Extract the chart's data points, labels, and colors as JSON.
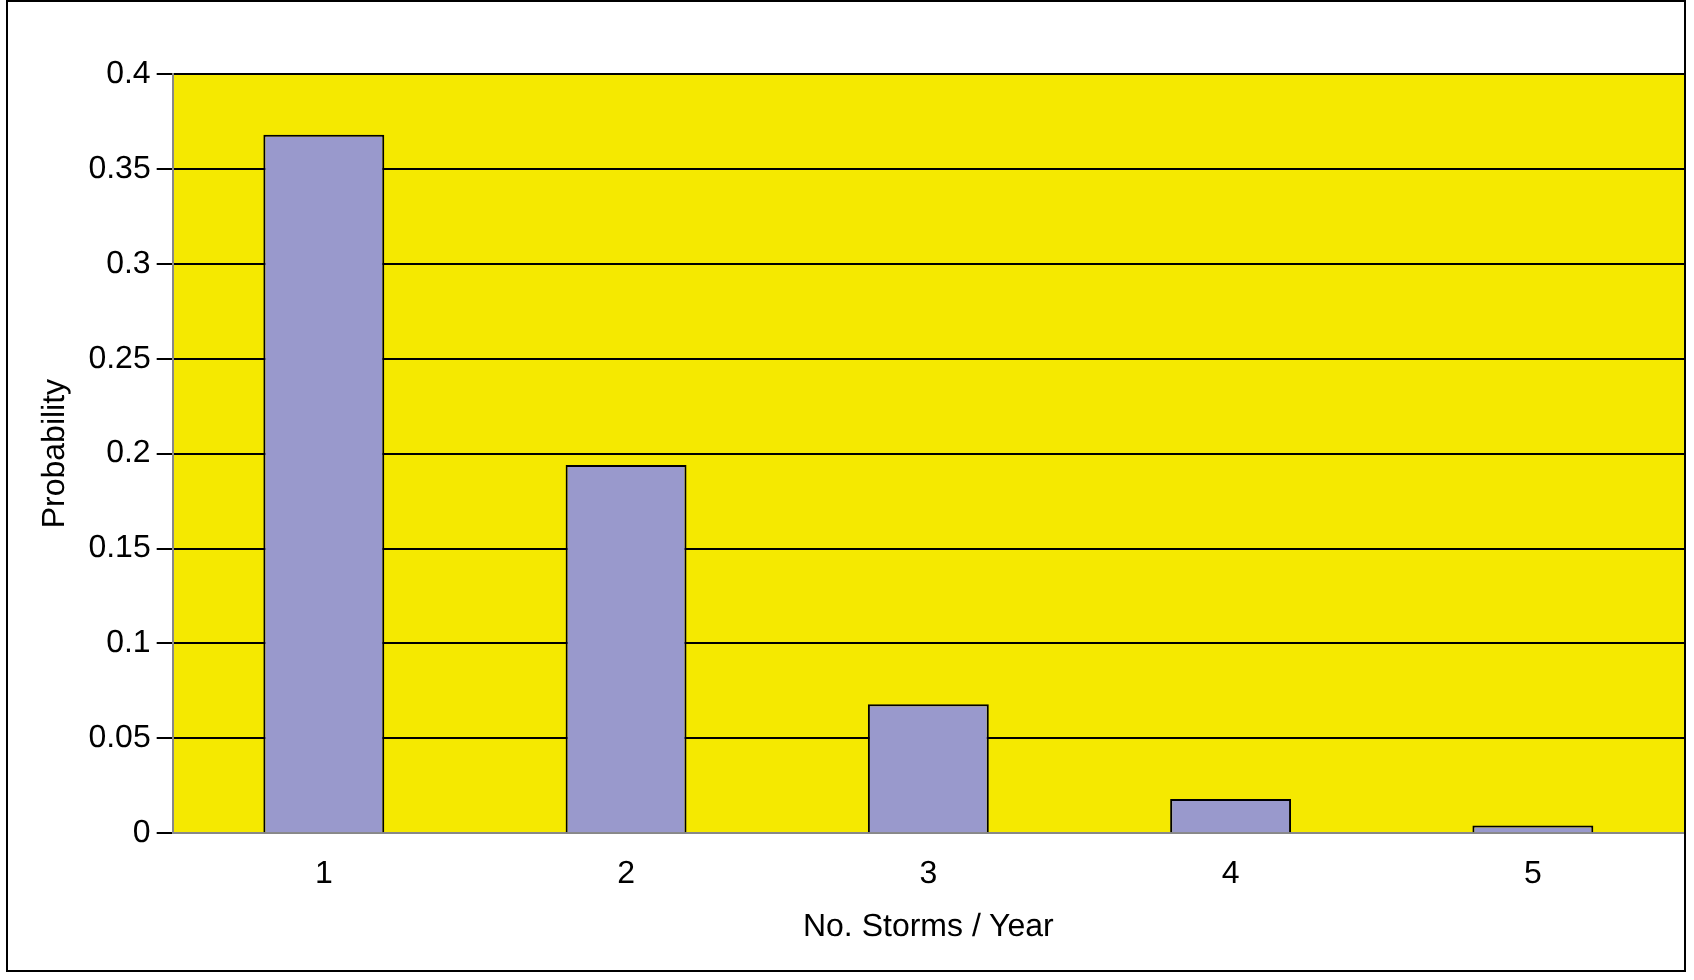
{
  "chart_data": {
    "type": "bar",
    "xlabel": "No. Storms / Year",
    "ylabel": "Probability",
    "categories": [
      "1",
      "2",
      "3",
      "4",
      "5"
    ],
    "values": [
      0.368,
      0.194,
      0.068,
      0.018,
      0.004
    ],
    "color": "#9999cc",
    "ylim": [
      0,
      0.4
    ],
    "yticks": [
      0,
      0.05,
      0.1,
      0.15,
      0.2,
      0.25,
      0.3,
      0.35,
      0.4
    ],
    "grid": "y",
    "legend": false
  }
}
